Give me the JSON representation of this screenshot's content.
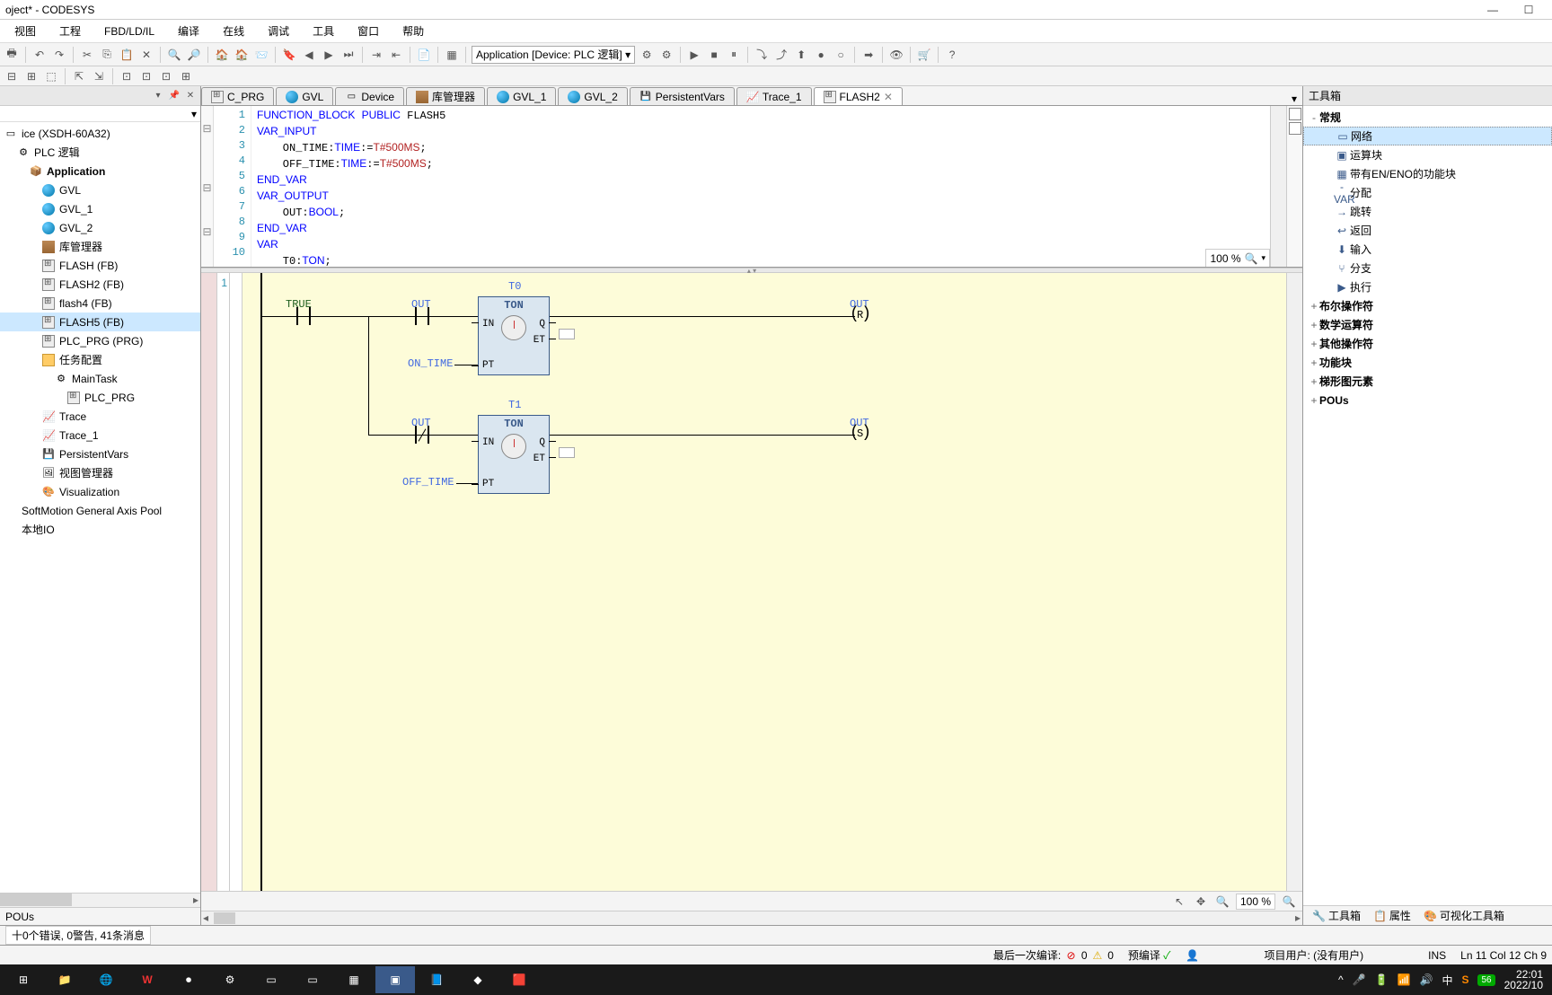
{
  "window": {
    "title": "oject* - CODESYS"
  },
  "menu": {
    "items": [
      "视图",
      "工程",
      "FBD/LD/IL",
      "编译",
      "在线",
      "调试",
      "工具",
      "窗口",
      "帮助"
    ]
  },
  "toolbar": {
    "app_combo": "Application [Device: PLC 逻辑]"
  },
  "tree": {
    "items": [
      {
        "indent": 0,
        "icon": "device",
        "label": "ice (XSDH-60A32)"
      },
      {
        "indent": 1,
        "icon": "plc",
        "label": "PLC 逻辑"
      },
      {
        "indent": 2,
        "icon": "app",
        "label": "Application",
        "bold": true
      },
      {
        "indent": 3,
        "icon": "globe",
        "label": "GVL"
      },
      {
        "indent": 3,
        "icon": "globe",
        "label": "GVL_1"
      },
      {
        "indent": 3,
        "icon": "globe",
        "label": "GVL_2"
      },
      {
        "indent": 3,
        "icon": "book",
        "label": "库管理器"
      },
      {
        "indent": 3,
        "icon": "fb",
        "label": "FLASH (FB)"
      },
      {
        "indent": 3,
        "icon": "fb",
        "label": "FLASH2 (FB)"
      },
      {
        "indent": 3,
        "icon": "fb",
        "label": "flash4 (FB)"
      },
      {
        "indent": 3,
        "icon": "fb",
        "label": "FLASH5 (FB)",
        "selected": true
      },
      {
        "indent": 3,
        "icon": "fb",
        "label": "PLC_PRG (PRG)"
      },
      {
        "indent": 3,
        "icon": "task",
        "label": "任务配置"
      },
      {
        "indent": 4,
        "icon": "taskitem",
        "label": "MainTask"
      },
      {
        "indent": 5,
        "icon": "fb",
        "label": "PLC_PRG"
      },
      {
        "indent": 3,
        "icon": "trace",
        "label": "Trace"
      },
      {
        "indent": 3,
        "icon": "trace",
        "label": "Trace_1"
      },
      {
        "indent": 3,
        "icon": "persist",
        "label": "PersistentVars"
      },
      {
        "indent": 3,
        "icon": "view",
        "label": "视图管理器"
      },
      {
        "indent": 3,
        "icon": "viz",
        "label": "Visualization"
      },
      {
        "indent": 0,
        "icon": "none",
        "label": "SoftMotion General Axis Pool"
      },
      {
        "indent": 0,
        "icon": "none",
        "label": "本地IO"
      }
    ],
    "footer": "POUs"
  },
  "tabs": {
    "items": [
      {
        "label": "C_PRG",
        "icon": "fb"
      },
      {
        "label": "GVL",
        "icon": "globe"
      },
      {
        "label": "Device",
        "icon": "device"
      },
      {
        "label": "库管理器",
        "icon": "book"
      },
      {
        "label": "GVL_1",
        "icon": "globe"
      },
      {
        "label": "GVL_2",
        "icon": "globe"
      },
      {
        "label": "PersistentVars",
        "icon": "persist"
      },
      {
        "label": "Trace_1",
        "icon": "trace"
      },
      {
        "label": "FLASH2",
        "icon": "fb",
        "active": true
      }
    ]
  },
  "code": {
    "lines": [
      {
        "n": 1,
        "html": "<span class='kw'>FUNCTION_BLOCK</span> <span class='kw'>PUBLIC</span> FLASH5"
      },
      {
        "n": 2,
        "html": "<span class='kw'>VAR_INPUT</span>"
      },
      {
        "n": 3,
        "html": "    ON_TIME:<span class='ty'>TIME</span>:=<span class='lit'>T#500MS</span>;"
      },
      {
        "n": 4,
        "html": "    OFF_TIME:<span class='ty'>TIME</span>:=<span class='lit'>T#500MS</span>;"
      },
      {
        "n": 5,
        "html": "<span class='kw'>END_VAR</span>"
      },
      {
        "n": 6,
        "html": "<span class='kw'>VAR_OUTPUT</span>"
      },
      {
        "n": 7,
        "html": "    OUT:<span class='ty'>BOOL</span>;"
      },
      {
        "n": 8,
        "html": "<span class='kw'>END_VAR</span>"
      },
      {
        "n": 9,
        "html": "<span class='kw'>VAR</span>"
      },
      {
        "n": 10,
        "html": "    T0:<span class='ty'>TON</span>;"
      }
    ],
    "zoom": "100 %"
  },
  "ladder": {
    "rung": "1",
    "zoom": "100 %",
    "true_lbl": "TRUE",
    "t0": "T0",
    "t1": "T1",
    "ton": "TON",
    "out": "OUT",
    "in": "IN",
    "q": "Q",
    "et": "ET",
    "pt": "PT",
    "on_time": "ON_TIME",
    "off_time": "OFF_TIME",
    "r": "R",
    "s": "S"
  },
  "toolbox": {
    "title": "工具箱",
    "groups": [
      {
        "exp": "-",
        "label": "常规",
        "bold": true
      },
      {
        "exp": "",
        "icon": "net",
        "label": "网络",
        "selected": true,
        "indent": 1
      },
      {
        "exp": "",
        "icon": "calc",
        "label": "运算块",
        "indent": 1
      },
      {
        "exp": "",
        "icon": "en",
        "label": "带有EN/ENO的功能块",
        "indent": 1
      },
      {
        "exp": "",
        "icon": "var",
        "label": "分配",
        "indent": 1
      },
      {
        "exp": "",
        "icon": "jump",
        "label": "跳转",
        "indent": 1
      },
      {
        "exp": "",
        "icon": "ret",
        "label": "返回",
        "indent": 1
      },
      {
        "exp": "",
        "icon": "input",
        "label": "输入",
        "indent": 1
      },
      {
        "exp": "",
        "icon": "branch",
        "label": "分支",
        "indent": 1
      },
      {
        "exp": "",
        "icon": "exec",
        "label": "执行",
        "indent": 1
      },
      {
        "exp": "+",
        "label": "布尔操作符",
        "bold": true
      },
      {
        "exp": "+",
        "label": "数学运算符",
        "bold": true
      },
      {
        "exp": "+",
        "label": "其他操作符",
        "bold": true
      },
      {
        "exp": "+",
        "label": "功能块",
        "bold": true
      },
      {
        "exp": "+",
        "label": "梯形图元素",
        "bold": true
      },
      {
        "exp": "+",
        "label": "POUs",
        "bold": true
      }
    ],
    "tabs": [
      "工具箱",
      "属性",
      "可视化工具箱"
    ]
  },
  "status": {
    "messages": "十0个错误, 0警告, 41条消息",
    "last_compile": "最后一次编译:",
    "err": "0",
    "warn": "0",
    "precompile": "预编译",
    "user": "项目用户: (没有用户)",
    "ins": "INS",
    "pos": "Ln 11   Col 12   Ch 9"
  },
  "taskbar": {
    "time": "22:01",
    "date": "2022/10",
    "ime": "中",
    "badge": "56"
  }
}
